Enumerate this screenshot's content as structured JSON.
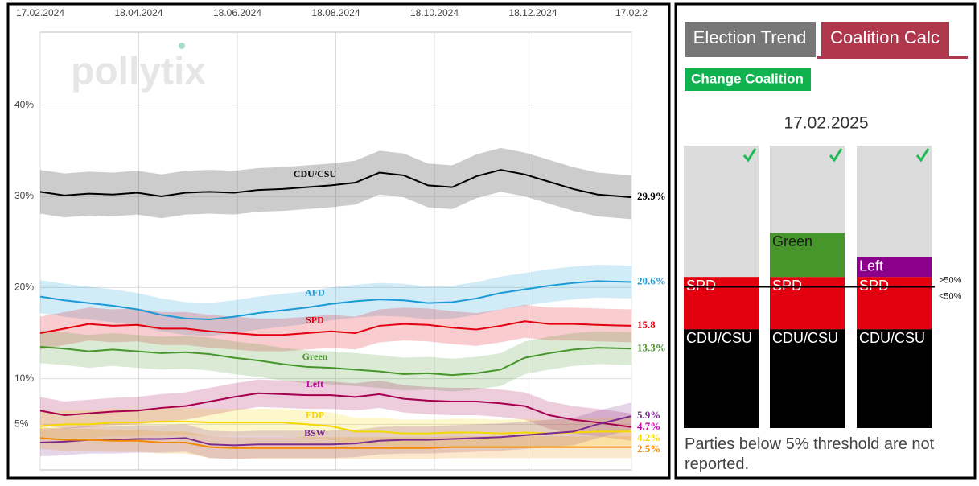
{
  "chart_data": [
    {
      "type": "line",
      "watermark": "pollytix",
      "x": [
        "2024-02-17",
        "2024-03-03",
        "2024-03-18",
        "2024-04-02",
        "2024-04-17",
        "2024-05-02",
        "2024-05-17",
        "2024-06-01",
        "2024-06-16",
        "2024-07-01",
        "2024-07-16",
        "2024-07-31",
        "2024-08-15",
        "2024-08-30",
        "2024-09-14",
        "2024-09-29",
        "2024-10-14",
        "2024-10-29",
        "2024-11-13",
        "2024-11-28",
        "2024-12-13",
        "2024-12-28",
        "2025-01-12",
        "2025-01-27",
        "2025-02-17"
      ],
      "xlim": [
        "2024-02-17",
        "2025-02-17"
      ],
      "xticks": [
        {
          "value": "2024-02-17",
          "label": "17.02.2024"
        },
        {
          "value": "2024-04-18",
          "label": "18.04.2024"
        },
        {
          "value": "2024-06-18",
          "label": "18.06.2024"
        },
        {
          "value": "2024-08-18",
          "label": "18.08.2024"
        },
        {
          "value": "2024-10-18",
          "label": "18.10.2024"
        },
        {
          "value": "2024-12-18",
          "label": "18.12.2024"
        },
        {
          "value": "2025-02-17",
          "label": "17.02.2"
        }
      ],
      "ylim": [
        0,
        48
      ],
      "yticks": [
        {
          "value": 5,
          "label": "5%"
        },
        {
          "value": 10,
          "label": "10%"
        },
        {
          "value": 20,
          "label": "20%"
        },
        {
          "value": 30,
          "label": "30%"
        },
        {
          "value": 40,
          "label": "40%"
        }
      ],
      "grid": true,
      "series": [
        {
          "name": "CDU/CSU",
          "color": "#000000",
          "ci": 2.4,
          "end_label": "29.9%",
          "values": [
            30.5,
            30.1,
            30.3,
            30.2,
            30.4,
            30.0,
            30.4,
            30.5,
            30.4,
            30.7,
            30.8,
            31.0,
            31.2,
            31.5,
            32.6,
            32.3,
            31.2,
            31.0,
            32.2,
            32.9,
            32.4,
            31.6,
            30.8,
            30.2,
            29.9
          ]
        },
        {
          "name": "AFD",
          "color": "#1a9ad6",
          "ci": 1.8,
          "end_label": "20.6%",
          "values": [
            19.0,
            18.6,
            18.3,
            18.0,
            17.6,
            17.0,
            16.6,
            16.5,
            16.8,
            17.2,
            17.5,
            17.8,
            18.2,
            18.5,
            18.7,
            18.6,
            18.3,
            18.4,
            18.8,
            19.4,
            19.8,
            20.2,
            20.5,
            20.7,
            20.6
          ]
        },
        {
          "name": "SPD",
          "color": "#e3000f",
          "ci": 1.8,
          "end_label": "15.8",
          "values": [
            15.0,
            15.5,
            16.0,
            15.8,
            15.9,
            15.5,
            15.5,
            15.2,
            15.0,
            14.8,
            14.8,
            15.0,
            15.2,
            15.0,
            15.8,
            16.0,
            15.9,
            15.6,
            15.4,
            15.8,
            16.3,
            16.0,
            16.0,
            15.9,
            15.8
          ]
        },
        {
          "name": "Green",
          "color": "#46962b",
          "ci": 1.8,
          "end_label": "13.3%",
          "values": [
            13.5,
            13.3,
            13.0,
            13.2,
            13.0,
            12.8,
            12.9,
            12.7,
            12.3,
            12.0,
            11.6,
            11.3,
            11.2,
            11.0,
            10.8,
            10.5,
            10.6,
            10.4,
            10.6,
            11.0,
            12.3,
            12.8,
            13.2,
            13.4,
            13.3
          ]
        },
        {
          "name": "Left",
          "color": "#a5004f",
          "label_color": "#c800a8",
          "ci": 1.5,
          "end_label": "4.7%",
          "values": [
            6.5,
            6.0,
            6.2,
            6.4,
            6.5,
            6.8,
            7.0,
            7.5,
            8.0,
            8.4,
            8.3,
            8.2,
            8.2,
            8.0,
            8.3,
            7.8,
            7.6,
            7.5,
            7.5,
            7.3,
            7.0,
            6.0,
            5.5,
            5.2,
            4.7
          ]
        },
        {
          "name": "FDP",
          "color": "#f5d800",
          "ci": 1.5,
          "end_label": "4.2%",
          "values": [
            4.8,
            5.0,
            5.0,
            5.2,
            5.2,
            5.3,
            5.3,
            5.2,
            5.2,
            5.2,
            5.2,
            5.0,
            4.8,
            4.2,
            4.2,
            4.0,
            4.0,
            4.1,
            4.1,
            4.0,
            4.1,
            4.0,
            4.1,
            4.2,
            4.2
          ]
        },
        {
          "name": "BSW",
          "color": "#7b2b8f",
          "ci": 1.5,
          "end_label": "5.9%",
          "values": [
            3.0,
            3.1,
            3.3,
            3.3,
            3.4,
            3.4,
            3.5,
            2.8,
            2.7,
            2.8,
            2.8,
            2.8,
            2.8,
            2.9,
            3.2,
            3.3,
            3.3,
            3.4,
            3.5,
            3.6,
            3.8,
            4.0,
            4.2,
            5.0,
            5.9
          ]
        },
        {
          "color": "#f08a00",
          "ci": 1.2,
          "end_label": "2.5%",
          "values": [
            3.5,
            3.3,
            3.3,
            3.2,
            3.2,
            3.0,
            3.0,
            2.5,
            2.4,
            2.4,
            2.4,
            2.4,
            2.4,
            2.4,
            2.4,
            2.4,
            2.4,
            2.5,
            2.5,
            2.5,
            2.5,
            2.5,
            2.5,
            2.5,
            2.5
          ]
        }
      ]
    },
    {
      "type": "bar",
      "stacked": true,
      "title": "17.02.2025",
      "categories": [
        null,
        null,
        null
      ],
      "ylim": [
        0,
        100
      ],
      "threshold": {
        "value": 50,
        "labels": [
          ">50%",
          "<50%"
        ]
      },
      "series": [
        {
          "name": "CDU/CSU",
          "color": "#000000",
          "label_color": "#ffffff",
          "values": [
            35.0,
            35.0,
            35.0
          ]
        },
        {
          "name": "SPD",
          "color": "#e3000f",
          "label_color": "#ffffff",
          "values": [
            18.5,
            18.5,
            18.5
          ]
        },
        {
          "name": "Green",
          "color": "#46962b",
          "label_color": "#1a1a1a",
          "values": [
            null,
            15.6,
            null
          ]
        },
        {
          "name": "Left",
          "color": "#8b008b",
          "label_color": "#ffffff",
          "values": [
            null,
            null,
            6.9
          ]
        }
      ]
    }
  ],
  "tabs": [
    "Election Trend",
    "Coalition Calc"
  ],
  "button": "Change Coalition",
  "note": "Parties below 5% threshold are not reported."
}
